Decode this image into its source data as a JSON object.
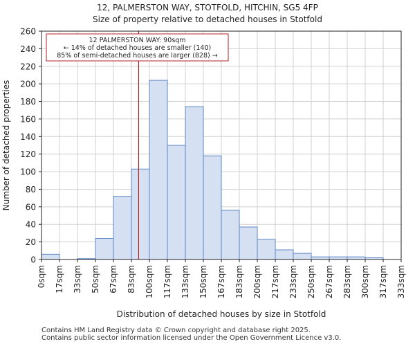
{
  "chart_data": {
    "type": "bar",
    "title": "12, PALMERSTON WAY, STOTFOLD, HITCHIN, SG5 4FP",
    "subtitle": "Size of property relative to detached houses in Stotfold",
    "xlabel": "Distribution of detached houses by size in Stotfold",
    "ylabel": "Number of detached properties",
    "x_tick_labels": [
      "0sqm",
      "17sqm",
      "33sqm",
      "50sqm",
      "67sqm",
      "83sqm",
      "100sqm",
      "117sqm",
      "133sqm",
      "150sqm",
      "167sqm",
      "183sqm",
      "200sqm",
      "217sqm",
      "233sqm",
      "250sqm",
      "267sqm",
      "283sqm",
      "300sqm",
      "317sqm",
      "333sqm"
    ],
    "bin_edges": [
      0,
      16.67,
      33.33,
      50,
      66.67,
      83.33,
      100,
      116.67,
      133.33,
      150,
      166.67,
      183.33,
      200,
      216.67,
      233.33,
      250,
      266.67,
      283.33,
      300,
      316.67,
      333.33
    ],
    "values": [
      6,
      0,
      1,
      24,
      72,
      103,
      204,
      130,
      174,
      118,
      56,
      37,
      23,
      11,
      7,
      3,
      3,
      3,
      2,
      0
    ],
    "ylim": [
      0,
      260
    ],
    "y_ticks": [
      0,
      20,
      40,
      60,
      80,
      100,
      120,
      140,
      160,
      180,
      200,
      220,
      240,
      260
    ],
    "marker": {
      "value": 90,
      "color": "#b22222",
      "annotation": [
        "12 PALMERSTON WAY: 90sqm",
        "← 14% of detached houses are smaller (140)",
        "85% of semi-detached houses are larger (828) →"
      ]
    },
    "bar_fill": "#d6e0f3",
    "bar_stroke": "#5b84c4",
    "grid": true
  },
  "footer": {
    "line1": "Contains HM Land Registry data © Crown copyright and database right 2025.",
    "line2": "Contains public sector information licensed under the Open Government Licence v3.0."
  }
}
